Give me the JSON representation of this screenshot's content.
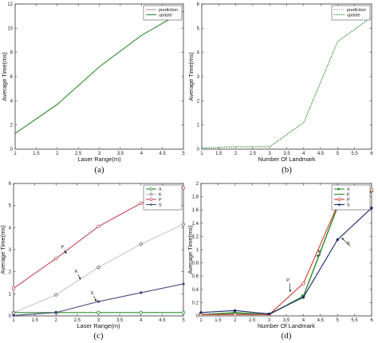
{
  "chart_data": [
    {
      "type": "line",
      "caption": "(a)",
      "xlabel": "Laser Range(m)",
      "ylabel": "Average Time(ms)",
      "xlim": [
        1,
        5
      ],
      "ylim": [
        0,
        12
      ],
      "xticks": [
        1,
        1.5,
        2,
        2.5,
        3,
        3.5,
        4,
        4.5,
        5
      ],
      "yticks": [
        0,
        2,
        4,
        6,
        8,
        10,
        12
      ],
      "legend_position": "top-right",
      "grid": false,
      "x": [
        1,
        2,
        3,
        4,
        5
      ],
      "series": [
        {
          "name": "prediction",
          "color": "#9a9a9a",
          "dash": "solid",
          "marker": "none",
          "values": [
            0.02,
            0.02,
            0.02,
            0.02,
            0.02
          ]
        },
        {
          "name": "update",
          "color": "#2e8b2e",
          "dash": "solid",
          "marker": "none",
          "values": [
            1.3,
            3.7,
            6.8,
            9.4,
            11.4
          ]
        }
      ]
    },
    {
      "type": "line",
      "caption": "(b)",
      "xlabel": "Number Of Landmark",
      "ylabel": "Average Time(ms)",
      "xlim": [
        1,
        6
      ],
      "ylim": [
        0,
        6
      ],
      "xticks": [
        1,
        1.5,
        2,
        2.5,
        3,
        3.5,
        4,
        4.5,
        5,
        5.5,
        6
      ],
      "yticks": [
        0,
        1,
        2,
        3,
        4,
        5,
        6
      ],
      "legend_position": "top-right",
      "grid": false,
      "x": [
        1,
        2,
        3,
        4,
        5,
        6
      ],
      "series": [
        {
          "name": "prediction",
          "color": "#9a9a9a",
          "dash": "dotted",
          "marker": "none",
          "values": [
            0.01,
            0.01,
            0.01,
            0.01,
            0.01,
            0.01
          ]
        },
        {
          "name": "update",
          "color": "#2e8b2e",
          "dash": "dotted",
          "marker": "none",
          "values": [
            0.05,
            0.1,
            0.1,
            1.1,
            4.45,
            5.45
          ]
        }
      ]
    },
    {
      "type": "line",
      "caption": "(c)",
      "xlabel": "Laser Range(m)",
      "ylabel": "Average Time(ms)",
      "xlim": [
        1,
        5
      ],
      "ylim": [
        0,
        6
      ],
      "xticks": [
        1,
        1.5,
        2,
        2.5,
        3,
        3.5,
        4,
        4.5,
        5
      ],
      "yticks": [
        0,
        1,
        2,
        3,
        4,
        5,
        6
      ],
      "legend_position": "top-right",
      "grid": false,
      "x": [
        1,
        2,
        3,
        4,
        5
      ],
      "series": [
        {
          "name": "X",
          "color": "#2e8b2e",
          "dash": "solid",
          "marker": "circle",
          "values": [
            0.15,
            0.15,
            0.15,
            0.15,
            0.15
          ]
        },
        {
          "name": "K",
          "color": "#c8c8c8",
          "dash": "solid",
          "marker": "diamond",
          "values": [
            0.15,
            0.95,
            2.2,
            3.25,
            4.15
          ]
        },
        {
          "name": "P",
          "color": "#c8455a",
          "dash": "solid",
          "marker": "circle",
          "values": [
            1.25,
            2.6,
            4.05,
            5.1,
            5.8
          ]
        },
        {
          "name": "S",
          "color": "#4a4a80",
          "dash": "solid",
          "marker": "dot",
          "values": [
            0.02,
            0.15,
            0.65,
            1.05,
            1.45
          ]
        }
      ],
      "annotations": [
        {
          "text": "P",
          "at": [
            2.15,
            3.05
          ],
          "arrow_to": [
            2.25,
            2.82
          ]
        },
        {
          "text": "K",
          "at": [
            2.48,
            1.95
          ],
          "arrow_to": [
            2.58,
            1.65
          ]
        },
        {
          "text": "S",
          "at": [
            2.85,
            0.98
          ],
          "arrow_to": [
            2.95,
            0.65
          ]
        }
      ]
    },
    {
      "type": "line",
      "caption": "(d)",
      "xlabel": "Number Of Landmark",
      "ylabel": "Average Time(ms)",
      "xlim": [
        1,
        6
      ],
      "ylim": [
        0,
        2
      ],
      "xticks": [
        1,
        1.5,
        2,
        2.5,
        3,
        3.5,
        4,
        4.5,
        5,
        5.5,
        6
      ],
      "yticks": [
        0,
        0.2,
        0.4,
        0.6,
        0.8,
        1,
        1.2,
        1.4,
        1.6,
        1.8,
        2
      ],
      "legend_position": "top-right",
      "grid": false,
      "x": [
        1,
        2,
        3,
        4,
        5,
        6
      ],
      "series": [
        {
          "name": "X",
          "color": "#2e8b2e",
          "dash": "solid",
          "marker": "triangle",
          "values": [
            0.02,
            0.05,
            0.02,
            0.3,
            1.65,
            1.88
          ]
        },
        {
          "name": "K",
          "color": "#2e8b2e",
          "dash": "solid",
          "marker": "none",
          "values": [
            0.02,
            0.04,
            0.02,
            0.29,
            1.64,
            1.87
          ]
        },
        {
          "name": "P",
          "color": "#d23a2e",
          "dash": "solid",
          "marker": "circle",
          "values": [
            0.02,
            0.02,
            0.02,
            0.49,
            1.67,
            1.9
          ]
        },
        {
          "name": "S",
          "color": "#1a2a6a",
          "dash": "solid",
          "marker": "dot",
          "values": [
            0.05,
            0.08,
            0.03,
            0.28,
            1.15,
            1.63
          ]
        }
      ],
      "annotations": [
        {
          "text": "P",
          "at": [
            3.55,
            0.52
          ],
          "arrow_to": [
            3.62,
            0.36
          ]
        },
        {
          "text": "K",
          "at": [
            4.47,
            0.95
          ],
          "arrow_to": [
            4.38,
            0.9
          ]
        },
        {
          "text": "S",
          "at": [
            5.32,
            1.08
          ],
          "arrow_to": [
            5.12,
            1.18
          ]
        }
      ]
    }
  ]
}
